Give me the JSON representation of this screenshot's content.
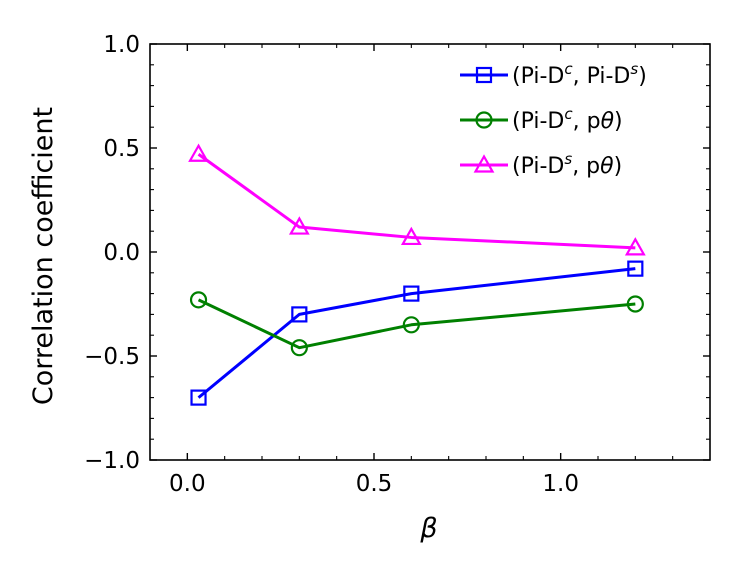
{
  "chart_data": {
    "type": "line",
    "xlabel": "β",
    "ylabel": "Correlation coefficient",
    "xlim": [
      -0.1,
      1.4
    ],
    "ylim": [
      -1.0,
      1.0
    ],
    "x_ticks": [
      0.0,
      0.5,
      1.0
    ],
    "x_tick_labels": [
      "0.0",
      "0.5",
      "1.0"
    ],
    "x_minor_step": 0.1,
    "y_ticks": [
      -1.0,
      -0.5,
      0.0,
      0.5,
      1.0
    ],
    "y_tick_labels": [
      "−1.0",
      "−0.5",
      "0.0",
      "0.5",
      "1.0"
    ],
    "y_minor_step": 0.1,
    "grid": false,
    "legend_position": "top-right",
    "x": [
      0.03,
      0.3,
      0.6,
      1.2
    ],
    "series": [
      {
        "name": "(Pi-D^c, Pi-D^s)",
        "legend_parts": [
          "(Pi-D",
          "c",
          ", Pi-D",
          "s",
          ")"
        ],
        "marker": "square",
        "color": "#0000ff",
        "values": [
          -0.7,
          -0.3,
          -0.2,
          -0.08
        ]
      },
      {
        "name": "(Pi-D^c, pθ)",
        "legend_parts": [
          "(Pi-D",
          "c",
          ", p",
          "θ",
          ")"
        ],
        "marker": "circle",
        "color": "#008000",
        "values": [
          -0.23,
          -0.46,
          -0.35,
          -0.25
        ]
      },
      {
        "name": "(Pi-D^s, pθ)",
        "legend_parts": [
          "(Pi-D",
          "s",
          ", p",
          "θ",
          ")"
        ],
        "marker": "triangle",
        "color": "#ff00ff",
        "values": [
          0.47,
          0.12,
          0.07,
          0.02
        ]
      }
    ]
  }
}
